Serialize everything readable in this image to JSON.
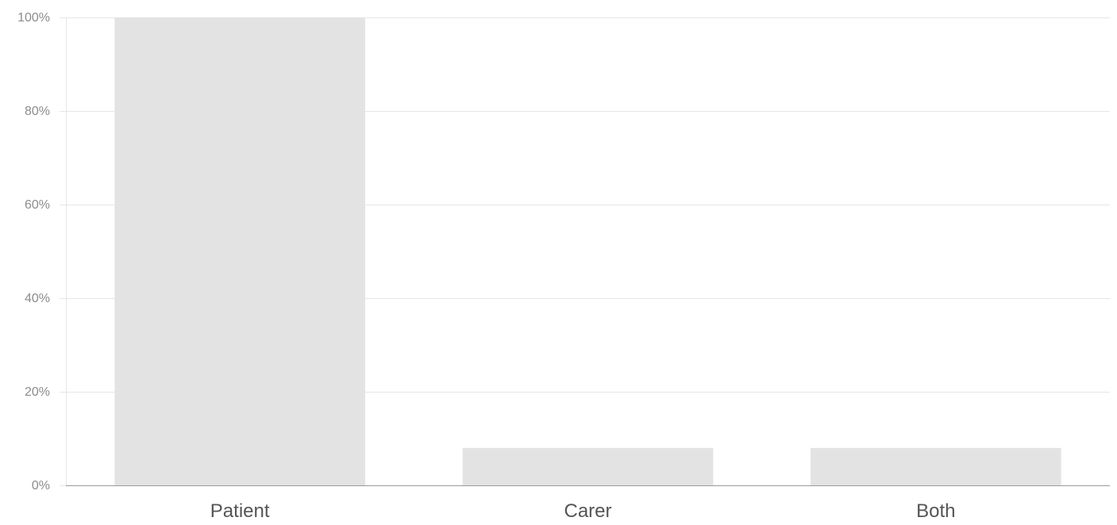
{
  "chart_data": {
    "type": "bar",
    "categories": [
      "Patient",
      "Carer",
      "Both"
    ],
    "values": [
      100,
      8,
      8
    ],
    "ylim": [
      0,
      100
    ],
    "y_ticks": [
      0,
      20,
      40,
      60,
      80,
      100
    ],
    "y_tick_format": "{v}%",
    "grid": true,
    "legend": "none",
    "title": "",
    "xlabel": "",
    "ylabel": "",
    "colors": {
      "bar": "#e3e3e3",
      "grid": "#e6e6e6",
      "axis": "#9a9a9a"
    }
  }
}
